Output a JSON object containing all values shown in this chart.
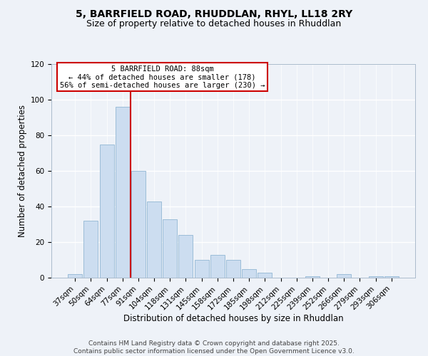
{
  "title": "5, BARRFIELD ROAD, RHUDDLAN, RHYL, LL18 2RY",
  "subtitle": "Size of property relative to detached houses in Rhuddlan",
  "xlabel": "Distribution of detached houses by size in Rhuddlan",
  "ylabel": "Number of detached properties",
  "bar_labels": [
    "37sqm",
    "50sqm",
    "64sqm",
    "77sqm",
    "91sqm",
    "104sqm",
    "118sqm",
    "131sqm",
    "145sqm",
    "158sqm",
    "172sqm",
    "185sqm",
    "198sqm",
    "212sqm",
    "225sqm",
    "239sqm",
    "252sqm",
    "266sqm",
    "279sqm",
    "293sqm",
    "306sqm"
  ],
  "bar_values": [
    2,
    32,
    75,
    96,
    60,
    43,
    33,
    24,
    10,
    13,
    10,
    5,
    3,
    0,
    0,
    1,
    0,
    2,
    0,
    1,
    1
  ],
  "bar_color": "#ccddf0",
  "bar_edgecolor": "#9bbdd8",
  "vline_color": "#cc0000",
  "ylim": [
    0,
    120
  ],
  "yticks": [
    0,
    20,
    40,
    60,
    80,
    100,
    120
  ],
  "annotation_lines": [
    "5 BARRFIELD ROAD: 88sqm",
    "← 44% of detached houses are smaller (178)",
    "56% of semi-detached houses are larger (230) →"
  ],
  "annotation_box_color": "#ffffff",
  "annotation_box_edgecolor": "#cc0000",
  "footer_lines": [
    "Contains HM Land Registry data © Crown copyright and database right 2025.",
    "Contains public sector information licensed under the Open Government Licence v3.0."
  ],
  "background_color": "#eef2f8",
  "grid_color": "#ffffff",
  "title_fontsize": 10,
  "subtitle_fontsize": 9,
  "axis_label_fontsize": 8.5,
  "tick_fontsize": 7.5,
  "footer_fontsize": 6.5,
  "annotation_fontsize": 7.5
}
